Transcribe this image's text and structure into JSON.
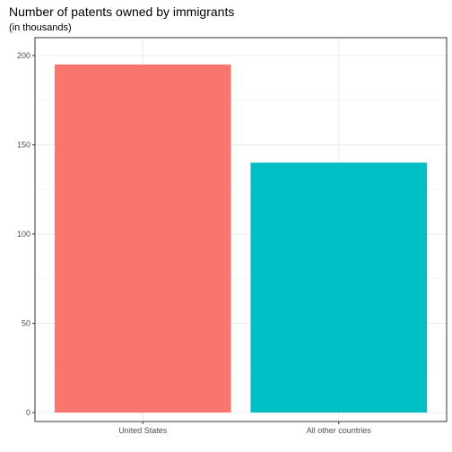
{
  "chart_data": {
    "type": "bar",
    "title": "Number of patents owned by immigrants",
    "subtitle": "(in thousands)",
    "xlabel": "",
    "ylabel": "",
    "categories": [
      "United States",
      "All other countries"
    ],
    "values": [
      195,
      140
    ],
    "colors": [
      "#F8766D",
      "#00BFC4"
    ],
    "ylim": [
      0,
      205
    ],
    "yticks": [
      0,
      50,
      100,
      150,
      200
    ],
    "grid": true,
    "legend": "none"
  }
}
